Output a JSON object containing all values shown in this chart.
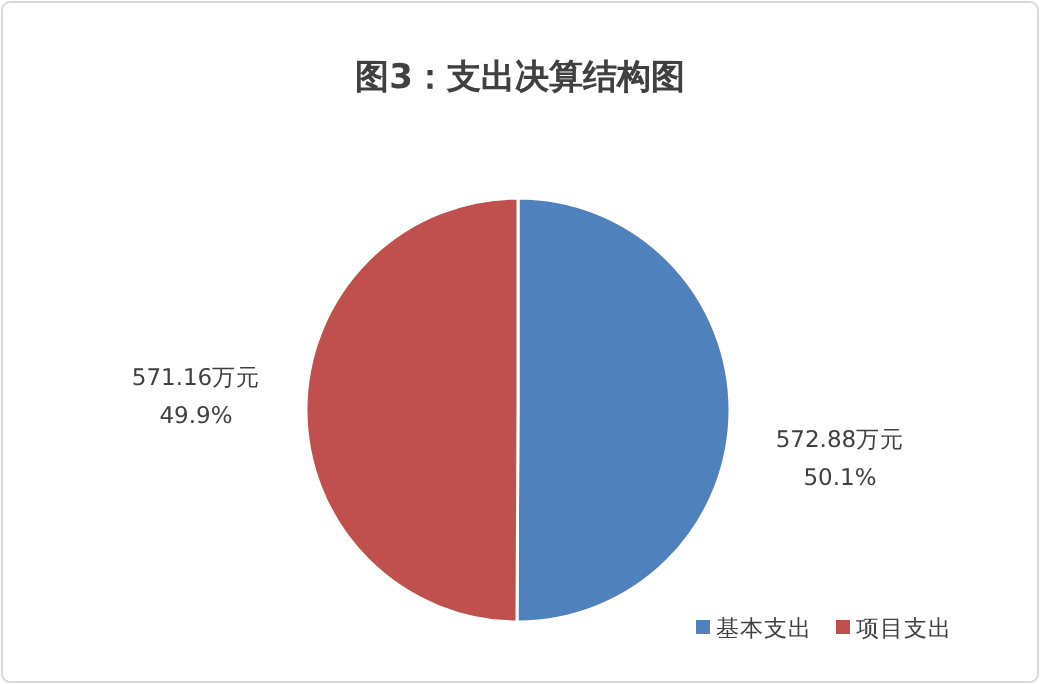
{
  "chart_data": {
    "type": "pie",
    "title": "图3：支出决算结构图",
    "categories": [
      "基本支出",
      "项目支出"
    ],
    "values": [
      572.88,
      571.16
    ],
    "colors": [
      "#4f81bd",
      "#c0504d"
    ],
    "value_labels": [
      "572.88万元\n50.1%",
      "571.16万元\n49.9%"
    ],
    "legend": "bottom right"
  }
}
